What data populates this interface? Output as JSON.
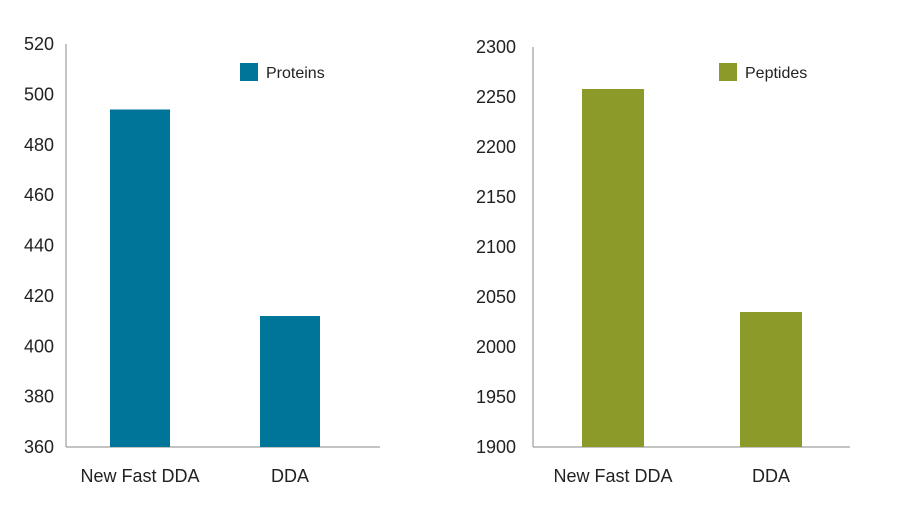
{
  "chart_data": [
    {
      "type": "bar",
      "categories": [
        "New Fast DDA",
        "DDA"
      ],
      "series": [
        {
          "name": "Proteins",
          "values": [
            494,
            412
          ],
          "color": "#00759a"
        }
      ],
      "title": "",
      "xlabel": "",
      "ylabel": "",
      "ylim": [
        360,
        520
      ],
      "yticks": [
        360,
        380,
        400,
        420,
        440,
        460,
        480,
        500,
        520
      ],
      "grid": false,
      "legend": "top-right"
    },
    {
      "type": "bar",
      "categories": [
        "New Fast DDA",
        "DDA"
      ],
      "series": [
        {
          "name": "Peptides",
          "values": [
            2258,
            2035
          ],
          "color": "#8c9a2a"
        }
      ],
      "title": "",
      "xlabel": "",
      "ylabel": "",
      "ylim": [
        1900,
        2300
      ],
      "yticks": [
        1900,
        1950,
        2000,
        2050,
        2100,
        2150,
        2200,
        2250,
        2300
      ],
      "grid": false,
      "legend": "top-right"
    }
  ]
}
